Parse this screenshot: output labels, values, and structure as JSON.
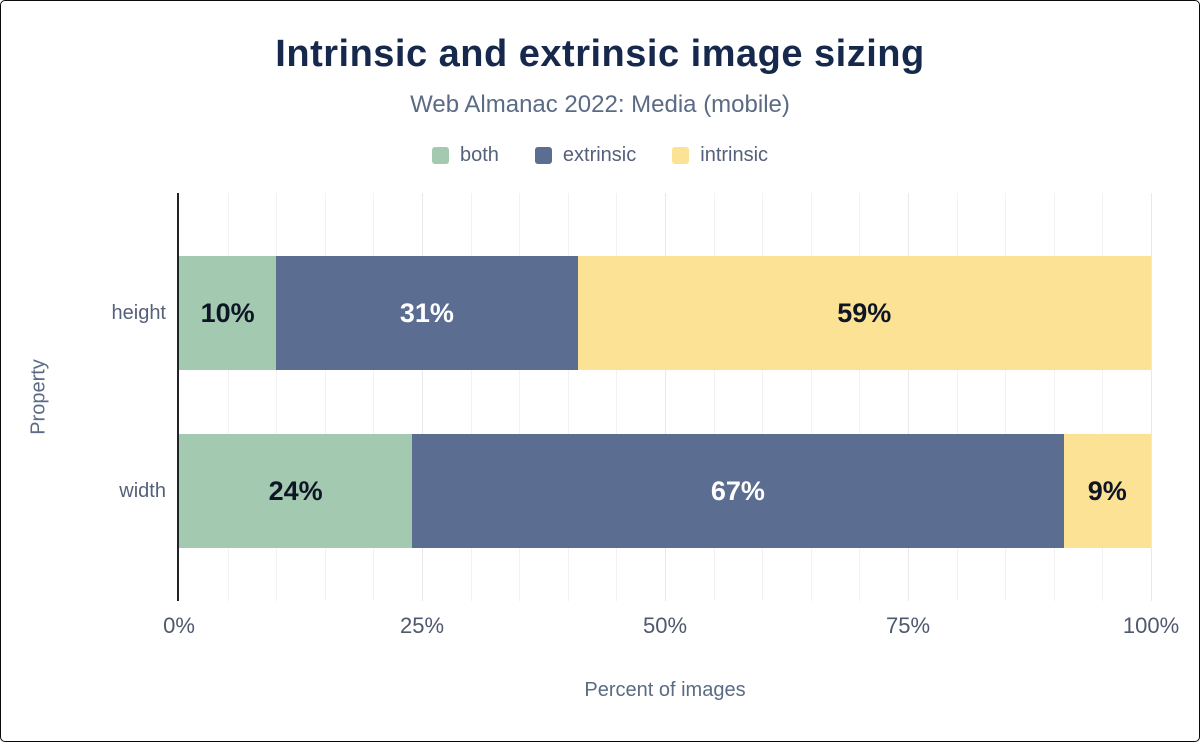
{
  "chart_data": {
    "type": "bar",
    "orientation": "horizontal",
    "stacked": true,
    "title": "Intrinsic and extrinsic image sizing",
    "subtitle": "Web Almanac 2022: Media (mobile)",
    "categories": [
      "height",
      "width"
    ],
    "series": [
      {
        "name": "both",
        "color": "#a3c9b1",
        "label_color": "#0e1626",
        "values": [
          10,
          24
        ]
      },
      {
        "name": "extrinsic",
        "color": "#5b6d90",
        "label_color": "#ffffff",
        "values": [
          31,
          67
        ]
      },
      {
        "name": "intrinsic",
        "color": "#fce294",
        "label_color": "#0e1626",
        "values": [
          59,
          9
        ]
      }
    ],
    "value_suffix": "%",
    "xlabel": "Percent of images",
    "ylabel": "Property",
    "xlim": [
      0,
      100
    ],
    "xticks": [
      0,
      25,
      50,
      75,
      100
    ],
    "xtick_labels": [
      "0%",
      "25%",
      "50%",
      "75%",
      "100%"
    ],
    "grid": true,
    "legend_position": "top",
    "colors": {
      "title": "#16294d",
      "subtitle": "#5b6b85",
      "axis_text": "#4e596e",
      "axis_line": "#222327",
      "gridline_major": "#e8e8ee",
      "gridline_minor": "#f2f2f6"
    }
  }
}
